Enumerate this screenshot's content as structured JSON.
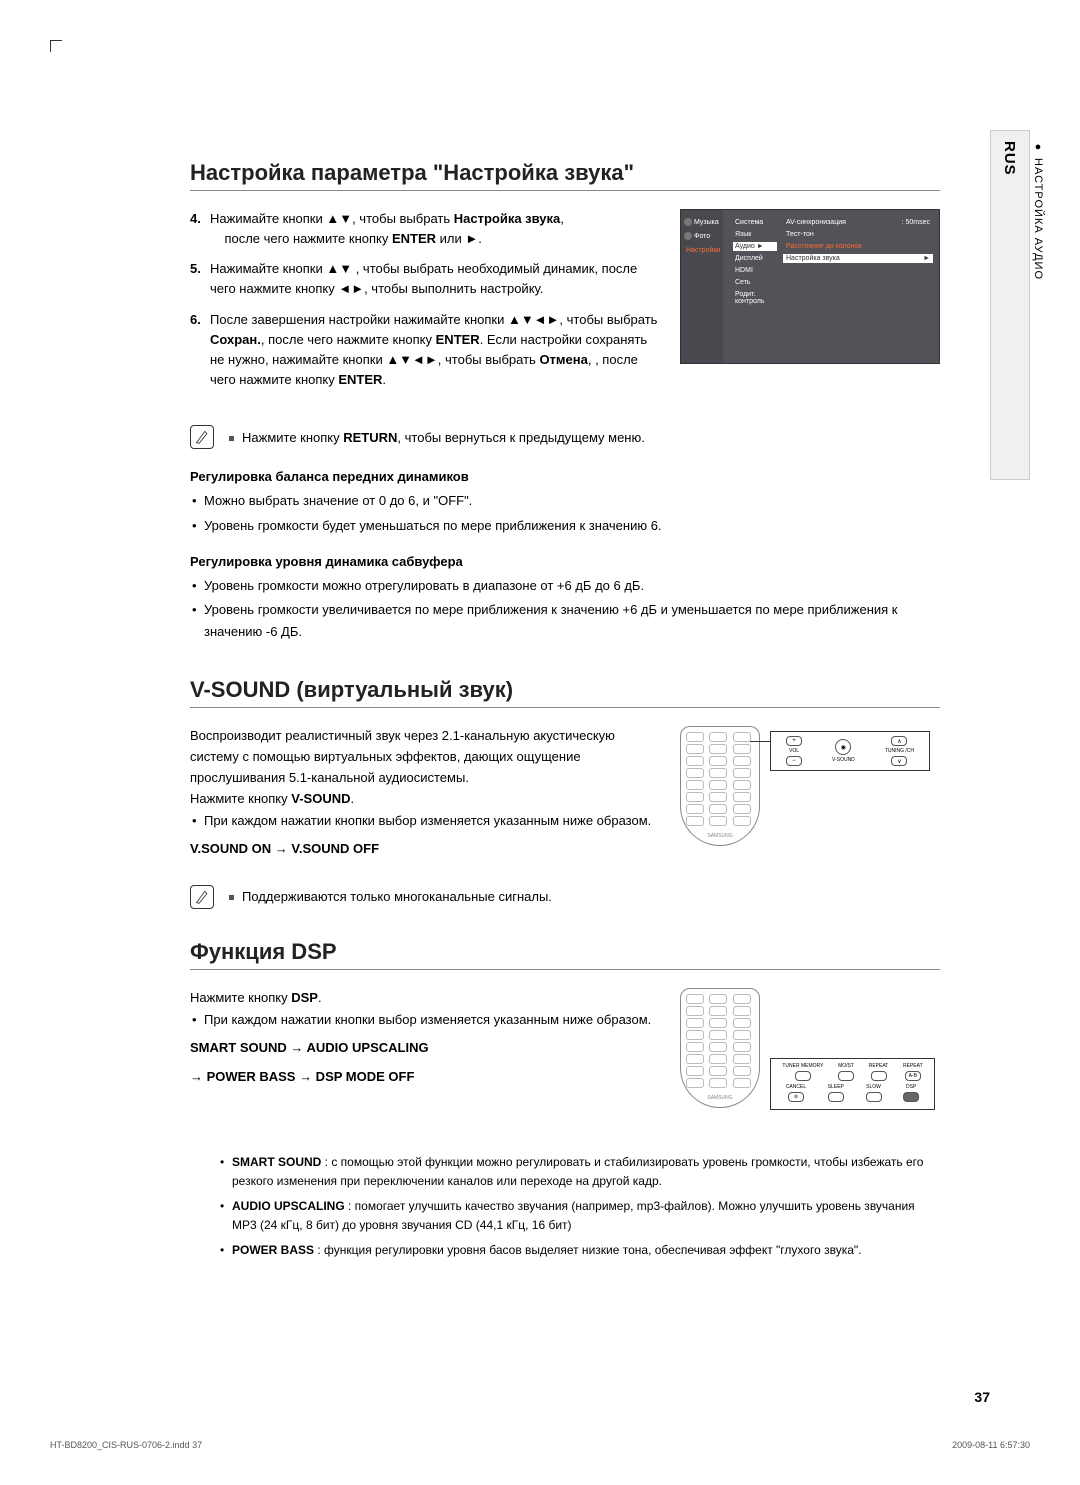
{
  "side_tab": {
    "lang": "RUS",
    "section": "● НАСТРОЙКА АУДИО"
  },
  "section1": {
    "title": "Настройка параметра \"Настройка звука\"",
    "steps": [
      {
        "num": "4.",
        "text": "Нажимайте кнопки ▲▼, чтобы выбрать <b>Настройка звука</b>,<br>&nbsp;&nbsp;&nbsp;&nbsp;после чего нажмите кнопку <b>ENTER</b> или ►."
      },
      {
        "num": "5.",
        "text": "Нажимайте кнопки ▲▼ , чтобы выбрать необходимый динамик, после чего нажмите кнопку ◄►, чтобы выполнить настройку."
      },
      {
        "num": "6.",
        "text": "После завершения настройки нажимайте кнопки ▲▼◄►, чтобы выбрать <b>Сохран.</b>, после чего нажмите кнопку <b>ENTER</b>. Если настройки сохранять не нужно, нажимайте кнопки ▲▼◄►, чтобы выбрать <b>Отмена</b>, , после чего нажмите кнопку <b>ENTER</b>."
      }
    ],
    "note": "Нажмите кнопку <b>RETURN</b>, чтобы вернуться к предыдущему меню.",
    "sub1_title": "Регулировка баланса передних динамиков",
    "sub1_items": [
      "Можно выбрать значение от 0 до 6, и \"OFF\".",
      "Уровень громкости будет уменьшаться по мере приближения к значению 6."
    ],
    "sub2_title": "Регулировка уровня динамика сабвуфера",
    "sub2_items": [
      "Уровень громкости можно отрегулировать в диапазоне от +6 дБ до 6 дБ.",
      "Уровень громкости увеличивается по мере приближения к значению +6 дБ и уменьшается по мере приближения к значению -6 ДБ."
    ]
  },
  "screenshot": {
    "sidebar": [
      "Музыка",
      "Фото",
      "Настройки"
    ],
    "sidebar_active_idx": 2,
    "menu": [
      "Система",
      "Язык",
      "Аудио",
      "Дисплей",
      "HDMI",
      "Сеть",
      "Родит. контроль"
    ],
    "menu_active_idx": 2,
    "right": [
      {
        "label": "AV-синхронизация",
        "value": ": 50msec"
      },
      {
        "label": "Тест-тон",
        "value": ""
      },
      {
        "label": "Расстояние до колонок",
        "value": ""
      },
      {
        "label": "Настройка звука",
        "value": "►"
      }
    ],
    "right_active_idx": 3
  },
  "section2": {
    "title": "V-SOUND (виртуальный звук)",
    "intro": "Воспроизводит реалистичный звук через 2.1-канальную акустическую систему с помощью виртуальных эффектов, дающих ощущение прослушивания 5.1-канальной аудиосистемы.",
    "press": "Нажмите кнопку <b>V-SOUND</b>.",
    "bullet": "При каждом нажатии кнопки выбор изменяется указанным ниже образом.",
    "modes": "V.SOUND ON  →  V.SOUND OFF",
    "note": "Поддерживаются только многоканальные сигналы.",
    "callout_buttons": [
      {
        "label": "VOL",
        "symbol": "+"
      },
      {
        "label": "V-SOUND",
        "symbol": "◉"
      },
      {
        "label": "TUNING /CH",
        "symbol": "∧"
      }
    ],
    "callout_extra": [
      "−",
      "",
      "∨"
    ]
  },
  "section3": {
    "title": "Функция DSP",
    "press": "Нажмите кнопку <b>DSP</b>.",
    "bullet": "При каждом нажатии кнопки выбор изменяется указанным ниже образом.",
    "modes1": "SMART SOUND  →  AUDIO UPSCALING",
    "modes2": " →  POWER BASS  →  DSP MODE OFF",
    "callout_row1": [
      "TUNER MEMORY",
      "MO/ST",
      "REPEAT",
      "REPEAT"
    ],
    "callout_row1_sym": [
      "",
      "",
      "",
      "A-B"
    ],
    "callout_row2": [
      "CANCEL",
      "SLEEP",
      "SLOW",
      "DSP"
    ],
    "callout_row2_sym": [
      "⊘",
      "",
      "",
      ""
    ],
    "details": [
      "<b>SMART SOUND</b> : с помощью этой функции можно регулировать и стабилизировать уровень громкости, чтобы избежать его резкого изменения при переключении каналов или переходе на другой кадр.",
      "<b>AUDIO UPSCALING</b> : помогает улучшить качество звучания (например, mp3-файлов). Можно улучшить уровень звучания MP3 (24 кГц, 8 бит) до уровня звучания CD (44,1 кГц, 16 бит)",
      "<b>POWER BASS</b> : функция регулировки уровня басов выделяет низкие тона, обеспечивая эффект \"глухого звука\"."
    ]
  },
  "remote_brand": "SAMSUNG",
  "page_number": "37",
  "footer": {
    "left": "HT-BD8200_CIS-RUS-0706-2.indd   37",
    "right": "2009-08-11   6:57:30"
  }
}
